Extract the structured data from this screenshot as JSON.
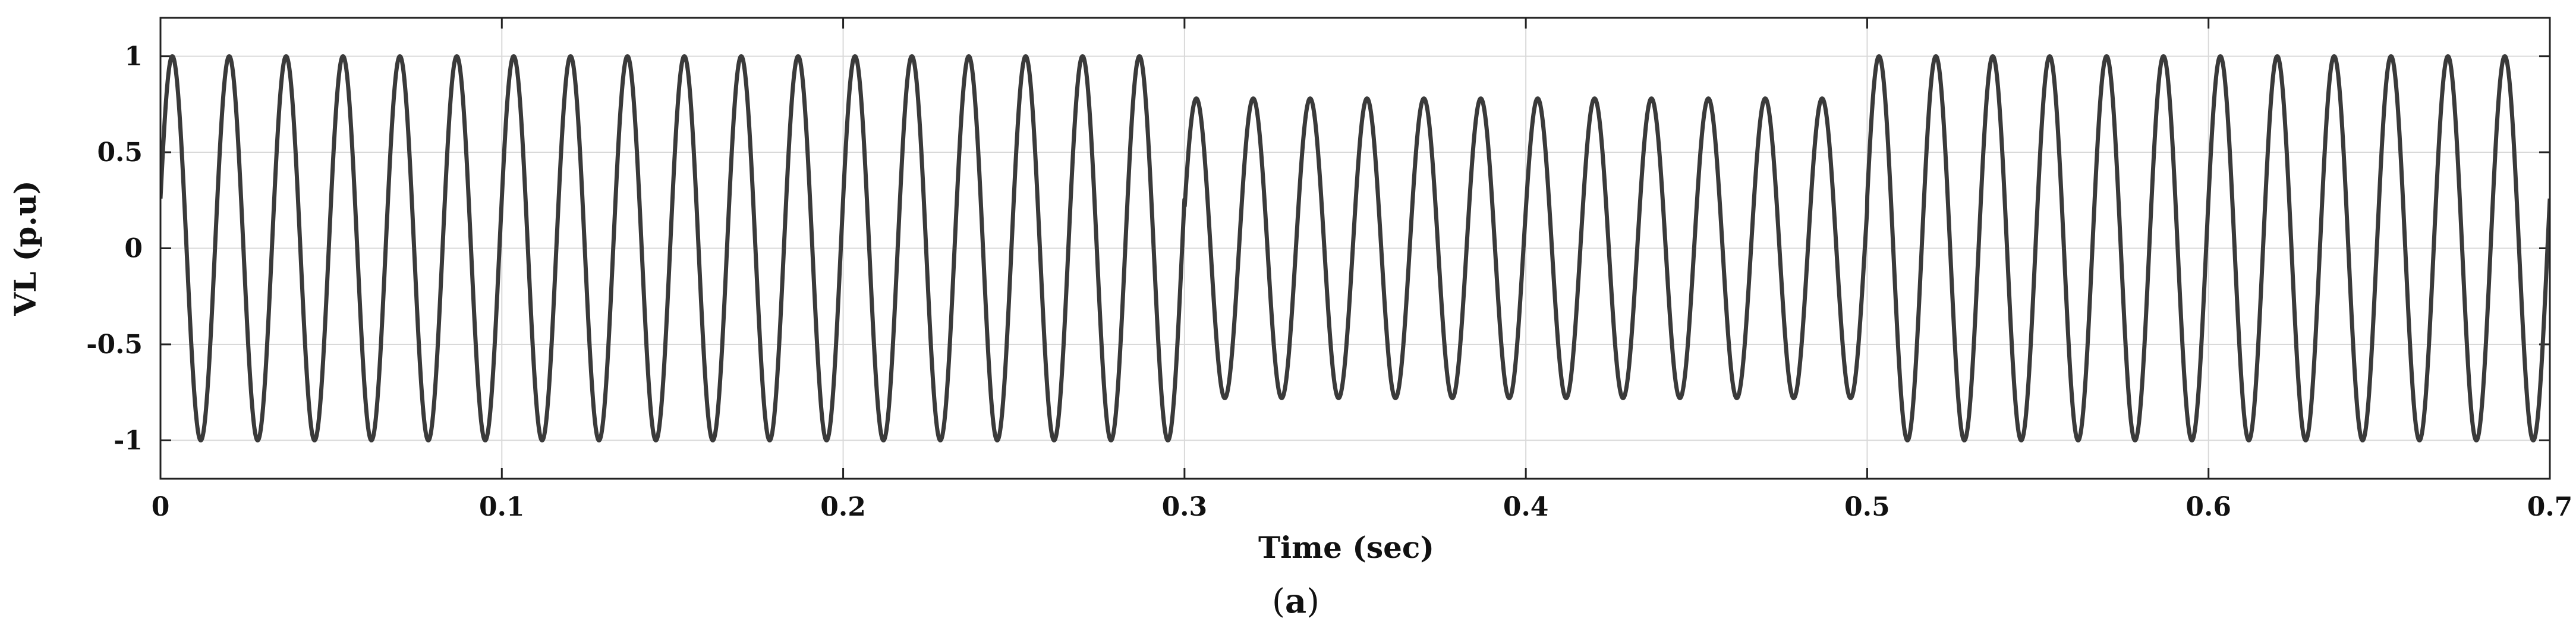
{
  "chart_data": {
    "type": "line",
    "xlabel": "Time (sec)",
    "ylabel": "VL (p.u)",
    "caption_open": "(",
    "caption_letter": "a",
    "caption_close": ")",
    "xlim": [
      0,
      0.7
    ],
    "ylim": [
      -1.2,
      1.2
    ],
    "xticks": [
      0,
      0.1,
      0.2,
      0.3,
      0.4,
      0.5,
      0.6,
      0.7
    ],
    "xtick_labels": [
      "0",
      "0.1",
      "0.2",
      "0.3",
      "0.4",
      "0.5",
      "0.6",
      "0.7"
    ],
    "yticks": [
      1,
      0.5,
      0,
      -0.5,
      -1
    ],
    "ytick_labels": [
      "1",
      "0.5",
      "0",
      "-0.5",
      "-1"
    ],
    "grid": true,
    "line_color": "#3a3a3a",
    "series": [
      {
        "frequency_hz": 60,
        "phase_deg": 15,
        "segments": [
          {
            "t_start": 0.0,
            "t_end": 0.3,
            "amplitude": 1.0
          },
          {
            "t_start": 0.3,
            "t_end": 0.5,
            "amplitude": 0.78
          },
          {
            "t_start": 0.5,
            "t_end": 0.7,
            "amplitude": 1.0
          }
        ]
      }
    ]
  }
}
